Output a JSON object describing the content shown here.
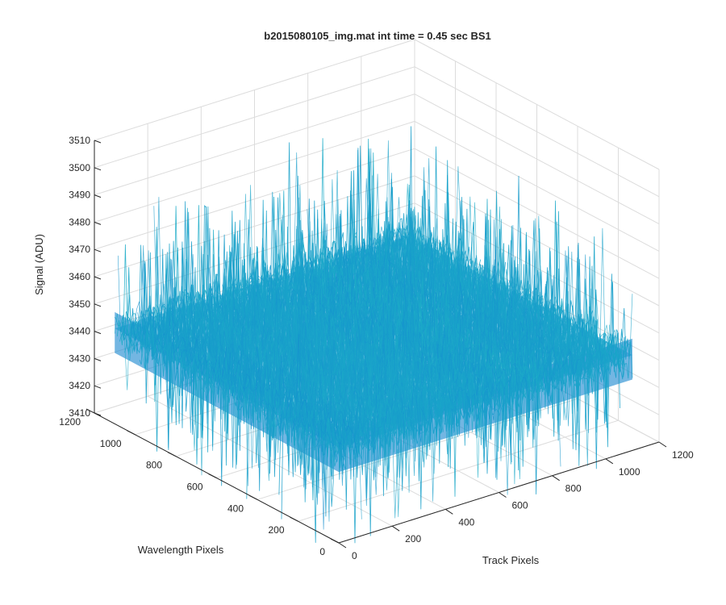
{
  "chart_data": {
    "type": "surface",
    "title": "b2015080105_img.mat int time = 0.45 sec   BS1",
    "xlabel": "Track Pixels",
    "ylabel": "Wavelength Pixels",
    "zlabel": "Signal (ADU)",
    "xlim": [
      0,
      1200
    ],
    "ylim": [
      0,
      1200
    ],
    "zlim": [
      3410,
      3510
    ],
    "xticks": [
      "0",
      "200",
      "400",
      "600",
      "800",
      "1000",
      "1200"
    ],
    "yticks": [
      "0",
      "200",
      "400",
      "600",
      "800",
      "1000",
      "1200"
    ],
    "zticks": [
      "3410",
      "3420",
      "3430",
      "3440",
      "3450",
      "3460",
      "3470",
      "3480",
      "3490",
      "3500",
      "3510"
    ],
    "grid": true,
    "colormap": "parula",
    "surface": {
      "x_range": [
        0,
        1100
      ],
      "y_range": [
        0,
        1100
      ],
      "mean_signal": 3445,
      "noise_min": 3405,
      "noise_max": 3505
    },
    "colors": {
      "low": "#0d72d4",
      "mid": "#1fb4c6",
      "high": "#d6d040",
      "axis": "#262626",
      "grid": "#dcdcdc"
    }
  }
}
